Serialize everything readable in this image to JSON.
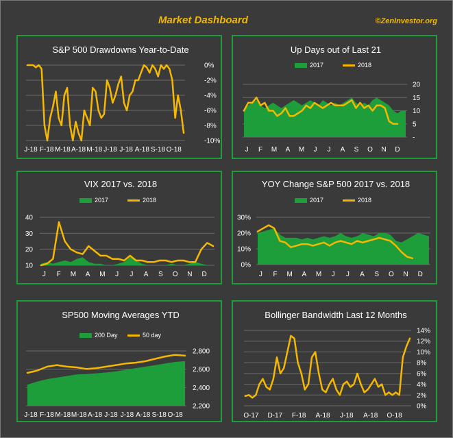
{
  "title": "Market Dashboard",
  "credit": "©ZenInvestor.org",
  "colors": {
    "background": "#3a3a3a",
    "border": "#1e9e3a",
    "title": "#f5b800",
    "line2018": "#f5b800",
    "area2017": "#1e9e3a",
    "grid": "#6a6a6a"
  },
  "chart_data": [
    {
      "id": "drawdowns",
      "type": "line",
      "title": "S&P 500 Drawdowns Year-to-Date",
      "x_ticks": [
        "J-18",
        "F-18",
        "M-18",
        "A-18",
        "M-18",
        "J-18",
        "J-18",
        "A-18",
        "S-18",
        "O-18"
      ],
      "y_ticks": [
        "0%",
        "-2%",
        "-4%",
        "-6%",
        "-8%",
        "-10%"
      ],
      "ylim": [
        -10,
        0
      ],
      "y_axis": "right",
      "series": [
        {
          "values": [
            0,
            0,
            0,
            -0.3,
            0,
            -0.5,
            -8,
            -10,
            -7,
            -5.5,
            -3.5,
            -7,
            -8,
            -4,
            -3,
            -8,
            -10,
            -7.5,
            -9,
            -10,
            -6,
            -7,
            -8,
            -3,
            -3.5,
            -6,
            -7,
            -6.5,
            -2,
            -3,
            -5,
            -4,
            -2.5,
            -1.5,
            -5,
            -6,
            -4,
            -3.5,
            -2,
            -2,
            -1,
            0,
            -0.3,
            -1,
            0,
            -0.5,
            -1.5,
            0,
            -0.5,
            0,
            -0.5,
            -2,
            -7,
            -4,
            -6,
            -9
          ]
        }
      ]
    },
    {
      "id": "updays",
      "type": "area",
      "title": "Up Days out of Last  21",
      "legend": [
        "2017",
        "2018"
      ],
      "x_ticks": [
        "J",
        "F",
        "M",
        "A",
        "M",
        "J",
        "J",
        "A",
        "S",
        "O",
        "N",
        "D"
      ],
      "y_ticks": [
        "20",
        "15",
        "10",
        "5",
        "-"
      ],
      "ylim": [
        0,
        20
      ],
      "y_axis": "right",
      "series": [
        {
          "name": "2017",
          "values": [
            11,
            12,
            13,
            14,
            12,
            11,
            12,
            13,
            12,
            11,
            12,
            13,
            14,
            13,
            12,
            13,
            14,
            13,
            12,
            14,
            13,
            12,
            13,
            12,
            13,
            14,
            15,
            13,
            12,
            13,
            12,
            14,
            15,
            14,
            13,
            12,
            10,
            9,
            10,
            10
          ]
        },
        {
          "name": "2018",
          "values": [
            10,
            13,
            13,
            15,
            12,
            13,
            10,
            10,
            8,
            9,
            11,
            8,
            8,
            9,
            10,
            12,
            11,
            13,
            12,
            11,
            12,
            13,
            12,
            12,
            12,
            13,
            14,
            11,
            13,
            11,
            12,
            10,
            12,
            12,
            11,
            6,
            5,
            5
          ]
        }
      ]
    },
    {
      "id": "vix",
      "type": "area",
      "title": "VIX 2017 vs. 2018",
      "legend": [
        "2017",
        "2018"
      ],
      "x_ticks": [
        "J",
        "F",
        "M",
        "A",
        "M",
        "J",
        "J",
        "A",
        "S",
        "O",
        "N",
        "D"
      ],
      "y_ticks": [
        "40",
        "30",
        "20",
        "10"
      ],
      "ylim": [
        10,
        40
      ],
      "y_axis": "left",
      "series": [
        {
          "name": "2017",
          "values": [
            11,
            12,
            11,
            12,
            13,
            12,
            14,
            15,
            12,
            11,
            11,
            10,
            10,
            11,
            12,
            15,
            13,
            11,
            10,
            10,
            10,
            10,
            11,
            10,
            10,
            11,
            12,
            11,
            10,
            10
          ]
        },
        {
          "name": "2018",
          "values": [
            10,
            11,
            14,
            37,
            25,
            20,
            18,
            17,
            22,
            19,
            16,
            16,
            14,
            14,
            13,
            16,
            13,
            13,
            12,
            12,
            13,
            13,
            12,
            13,
            13,
            12,
            12,
            20,
            24,
            22
          ]
        }
      ]
    },
    {
      "id": "yoy",
      "type": "area",
      "title": "YOY Change S&P 500 2017 vs. 2018",
      "legend": [
        "2017",
        "2018"
      ],
      "x_ticks": [
        "J",
        "F",
        "M",
        "A",
        "M",
        "J",
        "J",
        "A",
        "S",
        "O",
        "N",
        "D"
      ],
      "y_ticks": [
        "30%",
        "20%",
        "10%",
        "0%"
      ],
      "ylim": [
        0,
        30
      ],
      "y_axis": "left",
      "series": [
        {
          "name": "2017",
          "values": [
            20,
            21,
            22,
            23,
            19,
            17,
            17,
            17,
            16,
            17,
            16,
            17,
            18,
            17,
            18,
            20,
            18,
            17,
            18,
            20,
            19,
            18,
            20,
            20,
            19,
            15,
            14,
            16,
            18,
            20,
            19,
            18
          ]
        },
        {
          "name": "2018",
          "values": [
            21,
            23,
            25,
            23,
            15,
            14,
            11,
            12,
            13,
            13,
            12,
            13,
            14,
            12,
            14,
            15,
            14,
            13,
            15,
            14,
            15,
            16,
            17,
            16,
            15,
            12,
            8,
            5,
            4
          ]
        }
      ]
    },
    {
      "id": "ma",
      "type": "area",
      "title": "SP500 Moving Averages YTD",
      "legend": [
        "200 Day",
        "50 day"
      ],
      "x_ticks": [
        "J-18",
        "F-18",
        "M-18",
        "M-18",
        "A-18",
        "J-18",
        "J-18",
        "A-18",
        "S-18",
        "O-18"
      ],
      "y_ticks": [
        "2,800",
        "2,600",
        "2,400",
        "2,200"
      ],
      "ylim": [
        2200,
        2900
      ],
      "y_axis": "right",
      "series": [
        {
          "name": "200 Day",
          "values": [
            2470,
            2510,
            2540,
            2560,
            2580,
            2600,
            2605,
            2615,
            2625,
            2640,
            2660,
            2680,
            2700,
            2720,
            2740,
            2760,
            2770
          ]
        },
        {
          "name": "50 day",
          "values": [
            2620,
            2650,
            2700,
            2720,
            2700,
            2690,
            2670,
            2680,
            2700,
            2720,
            2740,
            2750,
            2770,
            2800,
            2830,
            2850,
            2840
          ]
        }
      ]
    },
    {
      "id": "bollinger",
      "type": "line",
      "title": "Bollinger Bandwidth Last 12 Months",
      "x_ticks": [
        "O-17",
        "D-17",
        "F-18",
        "A-18",
        "J-18",
        "A-18",
        "O-18"
      ],
      "y_ticks": [
        "14%",
        "12%",
        "10%",
        "8%",
        "6%",
        "4%",
        "2%",
        "0%"
      ],
      "ylim": [
        0,
        14
      ],
      "y_axis": "right",
      "series": [
        {
          "values": [
            1.8,
            2,
            1.5,
            2,
            4,
            5,
            3.5,
            3,
            5,
            9,
            6,
            7,
            10,
            13,
            12.5,
            8,
            6,
            3,
            4,
            9,
            10,
            6,
            3,
            2.5,
            4,
            5,
            3,
            2,
            4,
            4.5,
            3.5,
            4,
            6,
            4,
            2.5,
            3,
            4,
            5,
            3.5,
            4,
            2,
            2.5,
            2,
            2.5,
            2,
            9,
            11,
            12.5
          ]
        }
      ]
    }
  ]
}
